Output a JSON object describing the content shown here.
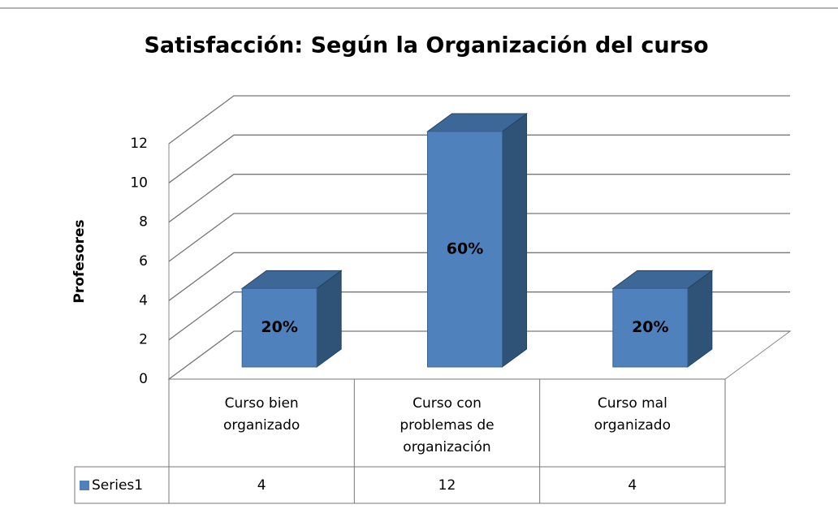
{
  "chart_data": {
    "type": "bar3d",
    "title": "Satisfacción: Según la Organización del curso",
    "y_label": "Profesores",
    "categories": [
      "Curso bien organizado",
      "Curso con problemas de organización",
      "Curso mal organizado"
    ],
    "series": [
      {
        "name": "Series1",
        "color": "#4f81bd",
        "values": [
          4,
          12,
          4
        ]
      }
    ],
    "bar_labels": [
      "20%",
      "60%",
      "20%"
    ],
    "ylim": [
      0,
      12
    ],
    "yticks": [
      0,
      2,
      4,
      6,
      8,
      10,
      12
    ],
    "grid": true,
    "data_table": true
  }
}
